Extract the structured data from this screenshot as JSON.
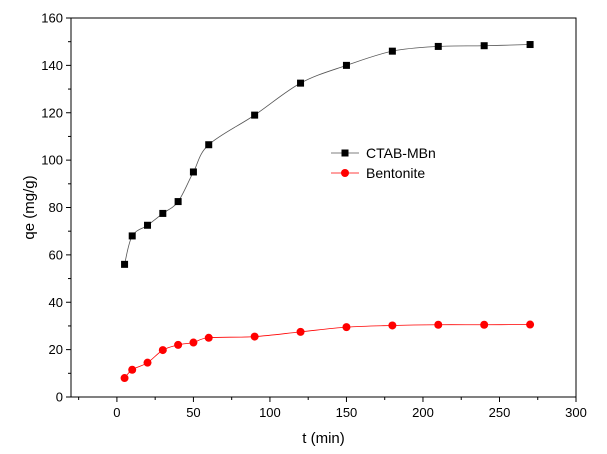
{
  "chart_data": {
    "type": "scatter",
    "xlabel": "t (min)",
    "ylabel": "qe (mg/g)",
    "xlim": [
      -30,
      300
    ],
    "ylim": [
      0,
      160
    ],
    "xticks": [
      0,
      50,
      100,
      150,
      200,
      250,
      300
    ],
    "yticks": [
      0,
      20,
      40,
      60,
      80,
      100,
      120,
      140,
      160
    ],
    "grid": false,
    "legend_position": "center-right",
    "series": [
      {
        "name": "CTAB-MBn",
        "marker": "square",
        "color": "#000000",
        "line_color": "#555555",
        "x": [
          5,
          10,
          20,
          30,
          40,
          50,
          60,
          90,
          120,
          150,
          180,
          210,
          240,
          270
        ],
        "y": [
          56,
          68,
          72.5,
          77.5,
          82.5,
          95,
          106.5,
          119,
          132.5,
          140,
          146,
          148,
          148.3,
          148.8
        ]
      },
      {
        "name": "Bentonite",
        "marker": "circle",
        "color": "#ff0000",
        "line_color": "#ff0000",
        "x": [
          5,
          10,
          20,
          30,
          40,
          50,
          60,
          90,
          120,
          150,
          180,
          210,
          240,
          270
        ],
        "y": [
          8,
          11.5,
          14.5,
          19.8,
          22,
          23,
          25,
          25.5,
          27.5,
          29.5,
          30.2,
          30.5,
          30.5,
          30.6
        ]
      }
    ]
  }
}
